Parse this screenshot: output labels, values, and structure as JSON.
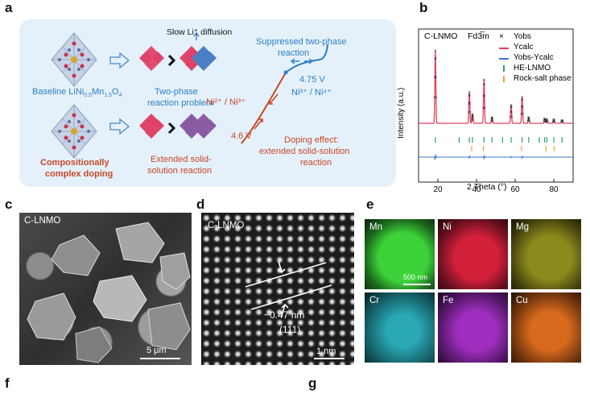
{
  "panel_letters": {
    "a": "a",
    "b": "b",
    "c": "c",
    "d": "d",
    "e": "e",
    "f": "f",
    "g": "g"
  },
  "panel_a": {
    "slow_diffusion": "Slow Li⁺ diffusion",
    "baseline_prefix": "Baseline LiNi",
    "baseline_sub1": "0.5",
    "baseline_mn": "Mn",
    "baseline_sub2": "1.5",
    "baseline_o": "O",
    "baseline_sub3": "4",
    "two_phase_problem_1": "Two-phase",
    "two_phase_problem_2": "reaction problem",
    "complex_doping_1": "Compositionally",
    "complex_doping_2": "complex doping",
    "extended_1": "Extended solid-",
    "extended_2": "solution reaction",
    "suppressed_1": "Suppressed two-phase",
    "suppressed_2": "reaction",
    "v_high": "4.75 V",
    "ni_high": "Ni³⁺ / Ni⁴⁺",
    "ni_low": "Ni²⁺ / Ni³⁺",
    "v_low": "4.6 V",
    "doping_effect_1": "Doping effect:",
    "doping_effect_2": "extended solid-solution",
    "doping_effect_3": "reaction",
    "colors": {
      "panel_bg": "#e5f1fa",
      "blue": "#2a7fc2",
      "red": "#c8472a",
      "pink": "#e0436a",
      "blue_diamond": "#4a7fc6",
      "purple": "#8a5ba3"
    }
  },
  "panel_b": {
    "label": "C-LNMO",
    "space_group": "Fd3̅m",
    "ylabel": "Intensity (a.u.)",
    "xlabel": "2 Theta (°)",
    "xticks": [
      "20",
      "40",
      "60",
      "80"
    ],
    "legend": [
      "Yobs",
      "Ycalc",
      "Yobs-Ycalc",
      "HE-LNMO",
      "Rock-salt phase"
    ],
    "colors": {
      "ycalc": "#e0405e",
      "diff": "#3f78c4",
      "he": "#2fa06a",
      "rock": "#f0a040"
    }
  },
  "chart_data": {
    "type": "line",
    "title": "",
    "xlabel": "2 Theta (°)",
    "ylabel": "Intensity (a.u.)",
    "xlim": [
      10,
      90
    ],
    "series": [
      {
        "name": "Ycalc",
        "peaks_x": [
          18.7,
          36.3,
          37.9,
          43.9,
          48.0,
          57.9,
          63.6,
          67.0,
          75.3,
          76.4,
          80.0,
          84.3
        ],
        "peaks_rel_intensity": [
          1.0,
          0.43,
          0.12,
          0.6,
          0.08,
          0.25,
          0.36,
          0.08,
          0.06,
          0.05,
          0.05,
          0.04
        ]
      },
      {
        "name": "HE-LNMO",
        "ticks_x": [
          18.7,
          31.0,
          36.3,
          37.9,
          43.9,
          48.0,
          53.5,
          57.9,
          63.6,
          67.0,
          72.5,
          75.3,
          76.4,
          80.0,
          84.3
        ]
      },
      {
        "name": "Rock-salt phase",
        "ticks_x": [
          37.5,
          43.6,
          63.3,
          76.0,
          80.2
        ]
      }
    ]
  },
  "panel_c": {
    "label": "C-LNMO",
    "scale": "5 μm"
  },
  "panel_d": {
    "label": "C-LNMO",
    "spacing": "~0.47 nm",
    "plane": "(111)",
    "scale": "1 nm"
  },
  "panel_e": {
    "maps": [
      {
        "element": "Mn",
        "color": "#3dd23a"
      },
      {
        "element": "Ni",
        "color": "#d2203a"
      },
      {
        "element": "Mg",
        "color": "#c8c42a"
      },
      {
        "element": "Cr",
        "color": "#2aa8b4"
      },
      {
        "element": "Fe",
        "color": "#a02fc0"
      },
      {
        "element": "Cu",
        "color": "#d86a1e"
      }
    ],
    "scale": "500 nm"
  }
}
